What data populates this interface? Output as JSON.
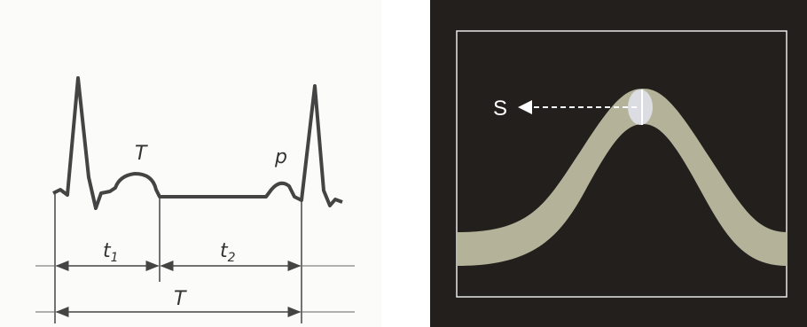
{
  "ecg": {
    "wave_labels": [
      "T",
      "p"
    ],
    "intervals": [
      {
        "main": "t",
        "sub": "1"
      },
      {
        "main": "t",
        "sub": "2"
      }
    ],
    "period": "T"
  },
  "panel": {
    "label": "S"
  }
}
